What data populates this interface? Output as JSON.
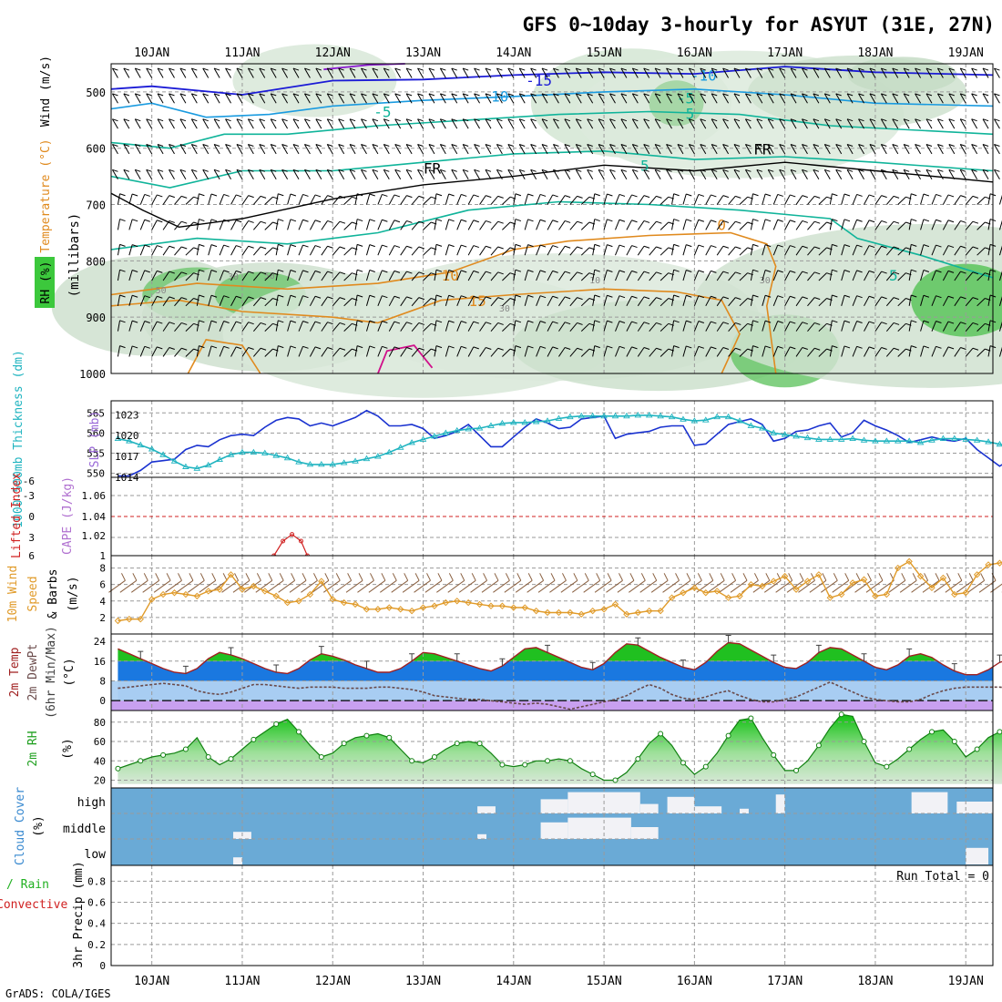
{
  "title": "GFS 0~10day 3-hourly for ASYUT (31E, 27N)",
  "footer": "GrADS: COLA/IGES",
  "colors": {
    "grid": "#9a9a9a",
    "wind_blue": "#1b1bd6",
    "temp_blue": "#1a9be0",
    "teal": "#10b49a",
    "orange": "#e08a1e",
    "magenta": "#d0108a",
    "purple": "#8a1ad0",
    "rh_green": "#3cc83c",
    "slp": "#1a32d0",
    "thickness": "#20b4c0",
    "cape": "#d02020",
    "wind10": "#e09a28",
    "cloud": "#6aaad6"
  },
  "chart_data": [
    {
      "id": "upper_air",
      "type": "heatmap",
      "xlabel": "",
      "ylabel": "(millibars)",
      "side_labels": [
        "Wind (m/s)",
        "Temperature (°C)",
        "RH (%)"
      ],
      "x_dates": [
        "10JAN",
        "11JAN",
        "12JAN",
        "13JAN",
        "14JAN",
        "15JAN",
        "16JAN",
        "17JAN",
        "18JAN",
        "19JAN"
      ],
      "y_ticks": [
        500,
        600,
        700,
        800,
        900,
        1000
      ],
      "ylim": [
        1000,
        450
      ],
      "contour_labels": [
        {
          "text": "-15",
          "level": -15
        },
        {
          "text": "-10",
          "level": -10
        },
        {
          "text": "-5",
          "level": -5
        },
        {
          "text": "FR",
          "level": 0
        },
        {
          "text": "5",
          "level": 5
        },
        {
          "text": "0",
          "level": 0
        },
        {
          "text": "10",
          "level": 10
        },
        {
          "text": "15",
          "level": 15
        },
        {
          "text": "30",
          "level": 30
        },
        {
          "text": "50",
          "level": 50
        },
        {
          "text": "-10",
          "level": -10
        },
        {
          "text": "-5",
          "level": -5
        },
        {
          "text": "5",
          "level": 5
        },
        {
          "text": "FR",
          "level": 0
        },
        {
          "text": "5",
          "level": 5
        },
        {
          "text": "30",
          "level": 30
        },
        {
          "text": "50",
          "level": 50
        },
        {
          "text": "10",
          "level": 10
        },
        {
          "text": "30",
          "level": 30
        }
      ]
    },
    {
      "id": "slp_thickness",
      "type": "line",
      "ylabel_left": "1000-500mb Thickness (dm)",
      "ylabel_right": "SLP (mb)",
      "left_ticks": [
        550,
        555,
        560,
        565
      ],
      "left_lim": [
        549,
        568
      ],
      "right_ticks": [
        1014,
        1017,
        1020,
        1023
      ],
      "right_lim": [
        1014,
        1025
      ],
      "series": [
        {
          "name": "SLP (mb)",
          "axis": "right",
          "values": [
            1014.2,
            1014.2,
            1015.0,
            1016.2,
            1016.4,
            1016.6,
            1018.0,
            1018.6,
            1018.4,
            1019.4,
            1020.0,
            1020.2,
            1020.0,
            1021.2,
            1022.2,
            1022.6,
            1022.4,
            1021.4,
            1021.8,
            1021.4,
            1022.0,
            1022.6,
            1023.6,
            1022.8,
            1021.4,
            1021.4,
            1021.6,
            1021.0,
            1019.6,
            1020.0,
            1020.6,
            1021.6,
            1020.0,
            1018.4,
            1018.4,
            1019.8,
            1021.2,
            1022.4,
            1021.8,
            1021.0,
            1021.2,
            1022.4,
            1022.6,
            1022.8,
            1019.6,
            1020.2,
            1020.4,
            1020.6,
            1021.2,
            1021.4,
            1021.4,
            1018.6,
            1018.8,
            1020.2,
            1021.6,
            1022.0,
            1022.4,
            1021.6,
            1019.2,
            1019.6,
            1020.6,
            1020.8,
            1021.4,
            1021.8,
            1019.8,
            1020.4,
            1022.2,
            1021.4,
            1020.8,
            1020.0,
            1019.0,
            1019.4,
            1019.8,
            1019.4,
            1019.2,
            1019.6,
            1018.0,
            1016.8,
            1015.6,
            1016.6
          ]
        },
        {
          "name": "1000-500mb Thickness (dm)",
          "axis": "left",
          "values": [
            558.6,
            558.0,
            557.0,
            556.0,
            554.6,
            553.0,
            551.6,
            551.2,
            552.0,
            553.4,
            554.6,
            555.2,
            555.2,
            555.0,
            554.4,
            553.8,
            552.8,
            552.2,
            552.2,
            552.2,
            552.6,
            553.0,
            553.6,
            554.2,
            555.2,
            556.4,
            557.6,
            558.4,
            559.2,
            560.0,
            560.6,
            561.0,
            561.2,
            561.8,
            562.4,
            562.6,
            562.6,
            562.8,
            563.0,
            563.6,
            564.0,
            564.2,
            564.2,
            564.2,
            564.2,
            564.2,
            564.4,
            564.4,
            564.2,
            564.0,
            563.4,
            563.0,
            563.2,
            564.0,
            564.0,
            563.0,
            561.8,
            561.2,
            560.0,
            559.6,
            559.2,
            558.8,
            558.4,
            558.4,
            558.4,
            558.6,
            558.2,
            558.0,
            558.0,
            558.0,
            558.0,
            557.6,
            558.2,
            558.6,
            558.6,
            558.4,
            558.2,
            557.8,
            557.2,
            556.6
          ]
        }
      ]
    },
    {
      "id": "cape_li",
      "type": "line",
      "ylabel_left": "Lifted Index",
      "ylabel_right": "CAPE (J/kg)",
      "left_ticks": [
        "-6",
        "-3",
        "0",
        "3",
        "6"
      ],
      "right_ticks": [
        "1",
        "1.02",
        "1.04",
        "1.06"
      ],
      "series": [
        {
          "name": "CAPE (J/kg)",
          "axis": "right",
          "values": [
            1.0,
            1.0,
            1.0,
            1.0,
            1.0,
            1.0,
            1.0,
            1.0,
            1.0,
            1.0,
            1.0,
            1.0,
            1.0,
            1.0,
            1.0,
            1.0,
            1.0,
            1.0,
            1.0,
            1.0,
            1.0,
            1.0,
            1.0,
            1.0,
            1.0,
            1.0,
            1.0,
            1.0,
            1.0,
            1.0,
            1.0,
            1.0,
            1.0,
            1.0,
            1.0,
            1.0,
            1.0,
            1.0,
            1.0,
            1.0,
            1.0,
            1.0,
            1.0,
            1.0,
            1.0,
            1.0,
            1.0,
            1.0,
            1.0,
            1.0,
            1.0,
            1.0,
            1.0,
            1.0,
            1.0,
            1.0,
            1.0,
            1.0,
            1.0,
            1.0,
            1.0,
            1.0,
            1.0,
            1.0,
            1.0,
            1.0,
            1.0,
            1.0,
            1.0,
            1.0,
            1.0,
            1.0,
            1.0,
            1.0,
            1.0,
            1.0,
            1.0,
            1.0,
            1.0,
            1.0
          ]
        }
      ],
      "cape_bump": [
        {
          "x": 11.35,
          "value": 1.0
        },
        {
          "x": 11.45,
          "value": 1.013
        },
        {
          "x": 11.55,
          "value": 1.019
        },
        {
          "x": 11.65,
          "value": 1.013
        },
        {
          "x": 11.72,
          "value": 1.0
        }
      ]
    },
    {
      "id": "wind10",
      "type": "line",
      "ylabel": "10m Wind Speed & Barbs (m/s)",
      "y_ticks": [
        2,
        4,
        6,
        8
      ],
      "ylim": [
        0,
        9.5
      ],
      "series": [
        {
          "name": "10m Wind Speed",
          "values": [
            1.6,
            1.8,
            1.8,
            4.2,
            4.8,
            5.0,
            4.8,
            4.6,
            5.2,
            5.4,
            7.2,
            5.4,
            5.8,
            5.2,
            4.6,
            3.8,
            4.0,
            4.8,
            6.4,
            4.2,
            3.8,
            3.6,
            3.0,
            3.0,
            3.2,
            3.0,
            2.8,
            3.2,
            3.4,
            3.8,
            4.0,
            3.8,
            3.6,
            3.4,
            3.4,
            3.2,
            3.2,
            2.8,
            2.6,
            2.6,
            2.6,
            2.4,
            2.8,
            3.0,
            3.6,
            2.4,
            2.6,
            2.8,
            2.8,
            4.4,
            5.0,
            5.6,
            5.0,
            5.2,
            4.4,
            4.6,
            6.0,
            5.8,
            6.4,
            7.0,
            5.4,
            6.4,
            7.2,
            4.4,
            4.8,
            6.2,
            6.6,
            4.6,
            4.8,
            8.0,
            8.8,
            7.0,
            5.6,
            6.8,
            4.8,
            5.0,
            7.2,
            8.4,
            8.6,
            9.0
          ]
        }
      ]
    },
    {
      "id": "temp2m",
      "type": "area",
      "ylabel": "2m Temp 2m DewPt (6hr Min/Max) (°C)",
      "y_ticks": [
        0,
        8,
        16,
        24
      ],
      "ylim": [
        -4,
        27
      ],
      "series": [
        {
          "name": "2m Temp",
          "values": [
            21.0,
            19.0,
            17.0,
            15.0,
            13.0,
            11.5,
            11.0,
            13.0,
            17.0,
            19.5,
            18.5,
            17.0,
            15.0,
            13.0,
            11.5,
            11.0,
            13.0,
            16.5,
            19.0,
            18.0,
            16.5,
            14.5,
            13.0,
            11.5,
            11.5,
            13.0,
            16.0,
            19.5,
            19.0,
            17.5,
            16.0,
            14.5,
            13.0,
            12.0,
            14.0,
            17.5,
            21.0,
            21.5,
            19.5,
            17.5,
            15.5,
            13.5,
            12.5,
            15.0,
            19.5,
            23.0,
            22.5,
            20.0,
            17.5,
            15.5,
            13.5,
            12.5,
            15.5,
            20.0,
            23.5,
            23.0,
            20.5,
            18.0,
            15.5,
            13.5,
            13.0,
            15.5,
            19.5,
            21.5,
            21.0,
            18.5,
            16.0,
            13.5,
            12.5,
            14.5,
            18.0,
            19.0,
            17.5,
            14.5,
            12.0,
            10.5,
            10.5,
            12.5,
            15.5,
            17.0
          ]
        },
        {
          "name": "2m DewPt",
          "values": [
            5.0,
            5.5,
            6.0,
            6.5,
            7.0,
            6.5,
            6.0,
            4.0,
            3.0,
            2.5,
            3.5,
            5.0,
            6.5,
            6.5,
            6.0,
            5.5,
            5.0,
            5.5,
            5.5,
            5.5,
            5.0,
            5.0,
            5.0,
            5.5,
            5.5,
            5.0,
            4.5,
            3.5,
            2.0,
            1.5,
            1.0,
            0.5,
            0.5,
            0.0,
            -0.5,
            -1.0,
            -1.5,
            -1.0,
            -1.5,
            -2.5,
            -3.5,
            -2.5,
            -1.5,
            -0.5,
            0.5,
            2.0,
            4.5,
            6.5,
            5.0,
            2.5,
            1.0,
            0.5,
            1.5,
            3.0,
            4.0,
            2.0,
            0.5,
            -0.5,
            -0.5,
            0.5,
            1.5,
            3.5,
            5.5,
            7.5,
            5.5,
            3.5,
            1.5,
            0.5,
            0.0,
            -0.5,
            -0.5,
            0.5,
            2.5,
            4.0,
            5.0,
            5.5,
            5.5,
            5.5,
            5.5,
            5.0
          ]
        }
      ]
    },
    {
      "id": "rh2m",
      "type": "area",
      "ylabel": "2m RH (%)",
      "y_ticks": [
        20,
        40,
        60,
        80
      ],
      "ylim": [
        12,
        92
      ],
      "series": [
        {
          "name": "2m RH",
          "values": [
            32,
            36,
            40,
            44,
            46,
            48,
            52,
            64,
            44,
            36,
            42,
            52,
            62,
            70,
            78,
            83,
            70,
            56,
            44,
            48,
            58,
            64,
            66,
            68,
            64,
            52,
            40,
            38,
            44,
            52,
            58,
            60,
            58,
            48,
            36,
            34,
            36,
            40,
            40,
            42,
            40,
            32,
            26,
            20,
            20,
            28,
            42,
            58,
            68,
            56,
            38,
            26,
            34,
            48,
            66,
            82,
            84,
            64,
            46,
            30,
            30,
            40,
            56,
            74,
            88,
            86,
            60,
            38,
            34,
            42,
            52,
            62,
            70,
            72,
            60,
            44,
            52,
            64,
            70,
            65
          ]
        }
      ]
    },
    {
      "id": "cloud",
      "type": "heatmap",
      "ylabel": "Cloud Cover (%)",
      "row_labels": [
        "high",
        "middle",
        "low"
      ]
    },
    {
      "id": "precip",
      "type": "bar",
      "ylabel": "3hr Precip (mm)",
      "legend": [
        "Total / Rain",
        "Convective"
      ],
      "annotation": "Run Total = 0",
      "y_ticks": [
        "0",
        "0.2",
        "0.4",
        "0.6",
        "0.8"
      ],
      "ylim": [
        0,
        0.95
      ],
      "values": [
        0,
        0,
        0,
        0,
        0,
        0,
        0,
        0,
        0,
        0,
        0,
        0,
        0,
        0,
        0,
        0,
        0,
        0,
        0,
        0,
        0,
        0,
        0,
        0,
        0,
        0,
        0,
        0,
        0,
        0,
        0,
        0,
        0,
        0,
        0,
        0,
        0,
        0,
        0,
        0,
        0,
        0,
        0,
        0,
        0,
        0,
        0,
        0,
        0,
        0,
        0,
        0,
        0,
        0,
        0,
        0,
        0,
        0,
        0,
        0,
        0,
        0,
        0,
        0,
        0,
        0,
        0,
        0,
        0,
        0,
        0,
        0,
        0,
        0,
        0,
        0,
        0,
        0,
        0,
        0
      ]
    }
  ]
}
